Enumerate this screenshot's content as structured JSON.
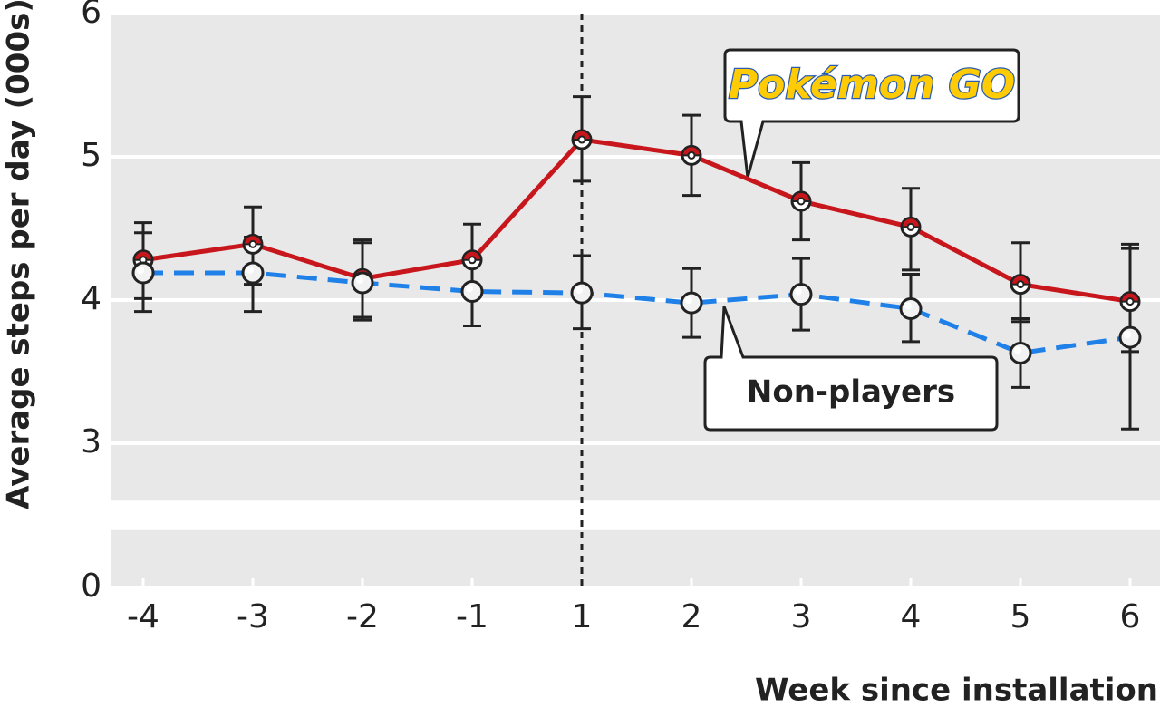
{
  "chart_data": {
    "type": "line",
    "x_label": "Week since installation",
    "y_label": "Average steps per day (000s)",
    "categories": [
      "-4",
      "-3",
      "-2",
      "-1",
      "1",
      "2",
      "3",
      "4",
      "5",
      "6"
    ],
    "ylim": [
      0,
      6
    ],
    "y_break": [
      0.4,
      2.6
    ],
    "yticks": [
      0,
      3,
      4,
      5,
      6
    ],
    "grid": true,
    "reference_line_at": "1",
    "series": [
      {
        "name": "Pokémon GO",
        "color": "#c8161d",
        "dashed": false,
        "marker": "pokeball",
        "values": [
          4.28,
          4.39,
          4.15,
          4.28,
          5.12,
          5.01,
          4.69,
          4.51,
          4.11,
          3.99
        ],
        "lower": [
          4.01,
          4.11,
          3.88,
          4.03,
          4.83,
          4.73,
          4.42,
          4.21,
          3.85,
          3.64
        ],
        "upper": [
          4.54,
          4.65,
          4.42,
          4.53,
          5.42,
          5.29,
          4.96,
          4.78,
          4.4,
          4.39
        ]
      },
      {
        "name": "Non-players",
        "color": "#1f80e8",
        "dashed": true,
        "marker": "plain",
        "values": [
          4.19,
          4.19,
          4.12,
          4.06,
          4.05,
          3.98,
          4.04,
          3.94,
          3.63,
          3.74
        ],
        "lower": [
          3.92,
          3.92,
          3.86,
          3.82,
          3.8,
          3.74,
          3.79,
          3.71,
          3.39,
          3.1
        ],
        "upper": [
          4.47,
          4.44,
          4.4,
          4.28,
          4.31,
          4.22,
          4.29,
          4.18,
          3.87,
          4.36
        ]
      }
    ]
  }
}
